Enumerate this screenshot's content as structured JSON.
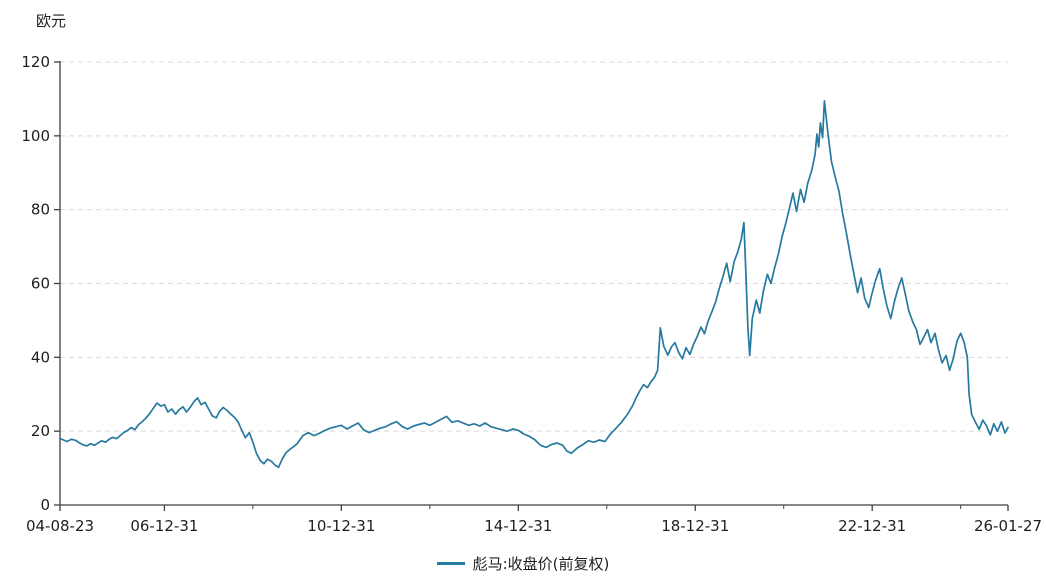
{
  "chart": {
    "unit": "欧元",
    "legend": "彪马:收盘价(前复权)",
    "accent_color": "#26799f",
    "axis_color": "#404040",
    "grid_color": "#d9d9d9",
    "text_color": "#1f1f1f"
  },
  "chart_data": {
    "type": "line",
    "title": "",
    "xlabel": "",
    "ylabel": "欧元",
    "ylim": [
      0,
      120
    ],
    "yticks": [
      0,
      20,
      40,
      60,
      80,
      100,
      120
    ],
    "xlim": [
      2004.64,
      2026.07
    ],
    "x_tick_labels": [
      "04-08-23",
      "06-12-31",
      "10-12-31",
      "14-12-31",
      "18-12-31",
      "22-12-31",
      "26-01-27"
    ],
    "x_tick_positions": [
      2004.64,
      2007.0,
      2011.0,
      2015.0,
      2019.0,
      2023.0,
      2026.07
    ],
    "x_minor_tick_positions": [
      2009.0,
      2013.0,
      2017.0,
      2021.0,
      2025.0
    ],
    "grid": "dashed-horizontal",
    "legend_position": "bottom-center",
    "series": [
      {
        "name": "彪马:收盘价(前复权)",
        "color": "#26799f",
        "points": [
          [
            2004.64,
            18.0
          ],
          [
            2004.72,
            17.6
          ],
          [
            2004.8,
            17.2
          ],
          [
            2004.9,
            17.8
          ],
          [
            2005.0,
            17.5
          ],
          [
            2005.08,
            16.8
          ],
          [
            2005.16,
            16.3
          ],
          [
            2005.25,
            16.0
          ],
          [
            2005.33,
            16.6
          ],
          [
            2005.42,
            16.2
          ],
          [
            2005.5,
            16.8
          ],
          [
            2005.58,
            17.4
          ],
          [
            2005.67,
            17.0
          ],
          [
            2005.75,
            17.8
          ],
          [
            2005.83,
            18.3
          ],
          [
            2005.92,
            18.0
          ],
          [
            2006.0,
            18.8
          ],
          [
            2006.08,
            19.6
          ],
          [
            2006.17,
            20.2
          ],
          [
            2006.25,
            21.0
          ],
          [
            2006.33,
            20.4
          ],
          [
            2006.42,
            21.8
          ],
          [
            2006.5,
            22.6
          ],
          [
            2006.58,
            23.5
          ],
          [
            2006.67,
            24.8
          ],
          [
            2006.75,
            26.2
          ],
          [
            2006.83,
            27.6
          ],
          [
            2006.92,
            26.8
          ],
          [
            2007.0,
            27.2
          ],
          [
            2007.08,
            25.2
          ],
          [
            2007.17,
            26.0
          ],
          [
            2007.25,
            24.6
          ],
          [
            2007.33,
            25.8
          ],
          [
            2007.42,
            26.6
          ],
          [
            2007.5,
            25.2
          ],
          [
            2007.58,
            26.4
          ],
          [
            2007.67,
            28.0
          ],
          [
            2007.75,
            29.0
          ],
          [
            2007.83,
            27.2
          ],
          [
            2007.92,
            27.8
          ],
          [
            2008.0,
            26.0
          ],
          [
            2008.08,
            24.2
          ],
          [
            2008.17,
            23.6
          ],
          [
            2008.25,
            25.4
          ],
          [
            2008.33,
            26.4
          ],
          [
            2008.42,
            25.6
          ],
          [
            2008.5,
            24.6
          ],
          [
            2008.58,
            23.8
          ],
          [
            2008.67,
            22.4
          ],
          [
            2008.75,
            20.2
          ],
          [
            2008.83,
            18.2
          ],
          [
            2008.92,
            19.6
          ],
          [
            2009.0,
            17.0
          ],
          [
            2009.08,
            14.0
          ],
          [
            2009.17,
            12.0
          ],
          [
            2009.25,
            11.2
          ],
          [
            2009.33,
            12.4
          ],
          [
            2009.42,
            11.8
          ],
          [
            2009.5,
            10.8
          ],
          [
            2009.58,
            10.2
          ],
          [
            2009.67,
            12.6
          ],
          [
            2009.75,
            14.2
          ],
          [
            2009.83,
            15.0
          ],
          [
            2009.92,
            15.8
          ],
          [
            2010.0,
            16.6
          ],
          [
            2010.13,
            18.8
          ],
          [
            2010.25,
            19.6
          ],
          [
            2010.38,
            18.8
          ],
          [
            2010.5,
            19.4
          ],
          [
            2010.63,
            20.2
          ],
          [
            2010.75,
            20.8
          ],
          [
            2010.88,
            21.2
          ],
          [
            2011.0,
            21.6
          ],
          [
            2011.13,
            20.6
          ],
          [
            2011.25,
            21.4
          ],
          [
            2011.38,
            22.2
          ],
          [
            2011.5,
            20.4
          ],
          [
            2011.63,
            19.6
          ],
          [
            2011.75,
            20.2
          ],
          [
            2011.88,
            20.8
          ],
          [
            2012.0,
            21.2
          ],
          [
            2012.13,
            22.0
          ],
          [
            2012.25,
            22.6
          ],
          [
            2012.38,
            21.2
          ],
          [
            2012.5,
            20.6
          ],
          [
            2012.63,
            21.4
          ],
          [
            2012.75,
            21.8
          ],
          [
            2012.88,
            22.2
          ],
          [
            2013.0,
            21.6
          ],
          [
            2013.13,
            22.4
          ],
          [
            2013.25,
            23.2
          ],
          [
            2013.38,
            24.0
          ],
          [
            2013.5,
            22.4
          ],
          [
            2013.63,
            22.8
          ],
          [
            2013.75,
            22.2
          ],
          [
            2013.88,
            21.6
          ],
          [
            2014.0,
            22.0
          ],
          [
            2014.13,
            21.4
          ],
          [
            2014.25,
            22.2
          ],
          [
            2014.38,
            21.2
          ],
          [
            2014.5,
            20.8
          ],
          [
            2014.63,
            20.4
          ],
          [
            2014.75,
            20.0
          ],
          [
            2014.88,
            20.6
          ],
          [
            2015.0,
            20.2
          ],
          [
            2015.13,
            19.2
          ],
          [
            2015.25,
            18.6
          ],
          [
            2015.38,
            17.6
          ],
          [
            2015.5,
            16.2
          ],
          [
            2015.63,
            15.6
          ],
          [
            2015.75,
            16.4
          ],
          [
            2015.88,
            16.8
          ],
          [
            2016.0,
            16.2
          ],
          [
            2016.1,
            14.6
          ],
          [
            2016.2,
            14.0
          ],
          [
            2016.33,
            15.4
          ],
          [
            2016.46,
            16.4
          ],
          [
            2016.58,
            17.4
          ],
          [
            2016.71,
            17.0
          ],
          [
            2016.83,
            17.6
          ],
          [
            2016.96,
            17.2
          ],
          [
            2017.08,
            19.2
          ],
          [
            2017.21,
            20.8
          ],
          [
            2017.33,
            22.4
          ],
          [
            2017.46,
            24.4
          ],
          [
            2017.58,
            26.8
          ],
          [
            2017.67,
            29.2
          ],
          [
            2017.75,
            31.0
          ],
          [
            2017.83,
            32.6
          ],
          [
            2017.92,
            31.8
          ],
          [
            2018.0,
            33.4
          ],
          [
            2018.08,
            34.6
          ],
          [
            2018.15,
            36.5
          ],
          [
            2018.21,
            48.0
          ],
          [
            2018.29,
            43.0
          ],
          [
            2018.38,
            40.6
          ],
          [
            2018.46,
            42.8
          ],
          [
            2018.54,
            44.0
          ],
          [
            2018.63,
            41.2
          ],
          [
            2018.71,
            39.6
          ],
          [
            2018.79,
            42.6
          ],
          [
            2018.88,
            40.8
          ],
          [
            2018.96,
            43.5
          ],
          [
            2019.04,
            45.5
          ],
          [
            2019.13,
            48.2
          ],
          [
            2019.21,
            46.4
          ],
          [
            2019.29,
            49.8
          ],
          [
            2019.38,
            52.5
          ],
          [
            2019.46,
            55.0
          ],
          [
            2019.54,
            58.5
          ],
          [
            2019.63,
            62.0
          ],
          [
            2019.71,
            65.5
          ],
          [
            2019.75,
            63.0
          ],
          [
            2019.79,
            60.5
          ],
          [
            2019.88,
            66.0
          ],
          [
            2019.96,
            68.5
          ],
          [
            2020.04,
            72.0
          ],
          [
            2020.1,
            76.5
          ],
          [
            2020.14,
            64.0
          ],
          [
            2020.19,
            48.0
          ],
          [
            2020.23,
            40.5
          ],
          [
            2020.29,
            50.5
          ],
          [
            2020.38,
            55.5
          ],
          [
            2020.46,
            52.0
          ],
          [
            2020.54,
            58.0
          ],
          [
            2020.63,
            62.5
          ],
          [
            2020.71,
            60.0
          ],
          [
            2020.79,
            64.0
          ],
          [
            2020.88,
            68.0
          ],
          [
            2020.96,
            72.5
          ],
          [
            2021.04,
            76.0
          ],
          [
            2021.13,
            80.5
          ],
          [
            2021.21,
            84.5
          ],
          [
            2021.29,
            79.5
          ],
          [
            2021.38,
            85.5
          ],
          [
            2021.46,
            82.0
          ],
          [
            2021.54,
            87.0
          ],
          [
            2021.63,
            90.5
          ],
          [
            2021.71,
            95.0
          ],
          [
            2021.75,
            100.5
          ],
          [
            2021.79,
            97.0
          ],
          [
            2021.83,
            103.5
          ],
          [
            2021.88,
            99.5
          ],
          [
            2021.92,
            109.5
          ],
          [
            2021.96,
            105.0
          ],
          [
            2022.0,
            100.5
          ],
          [
            2022.08,
            93.0
          ],
          [
            2022.17,
            88.5
          ],
          [
            2022.25,
            85.0
          ],
          [
            2022.33,
            79.0
          ],
          [
            2022.42,
            73.5
          ],
          [
            2022.5,
            68.0
          ],
          [
            2022.58,
            63.0
          ],
          [
            2022.67,
            57.5
          ],
          [
            2022.75,
            61.5
          ],
          [
            2022.83,
            56.0
          ],
          [
            2022.92,
            53.5
          ],
          [
            2023.0,
            57.5
          ],
          [
            2023.08,
            61.0
          ],
          [
            2023.17,
            64.0
          ],
          [
            2023.25,
            58.5
          ],
          [
            2023.33,
            54.0
          ],
          [
            2023.42,
            50.5
          ],
          [
            2023.5,
            55.0
          ],
          [
            2023.58,
            58.5
          ],
          [
            2023.67,
            61.5
          ],
          [
            2023.75,
            57.0
          ],
          [
            2023.83,
            52.5
          ],
          [
            2023.92,
            49.5
          ],
          [
            2024.0,
            47.5
          ],
          [
            2024.08,
            43.5
          ],
          [
            2024.17,
            45.5
          ],
          [
            2024.25,
            47.5
          ],
          [
            2024.33,
            44.0
          ],
          [
            2024.42,
            46.5
          ],
          [
            2024.5,
            42.0
          ],
          [
            2024.58,
            38.5
          ],
          [
            2024.67,
            40.5
          ],
          [
            2024.75,
            36.5
          ],
          [
            2024.83,
            39.5
          ],
          [
            2024.92,
            44.5
          ],
          [
            2025.0,
            46.5
          ],
          [
            2025.08,
            44.0
          ],
          [
            2025.15,
            40.0
          ],
          [
            2025.19,
            30.0
          ],
          [
            2025.25,
            24.5
          ],
          [
            2025.33,
            22.5
          ],
          [
            2025.42,
            20.5
          ],
          [
            2025.5,
            23.0
          ],
          [
            2025.58,
            21.5
          ],
          [
            2025.67,
            19.0
          ],
          [
            2025.75,
            22.0
          ],
          [
            2025.83,
            20.0
          ],
          [
            2025.92,
            22.5
          ],
          [
            2026.0,
            19.5
          ],
          [
            2026.07,
            21.0
          ]
        ]
      }
    ]
  }
}
